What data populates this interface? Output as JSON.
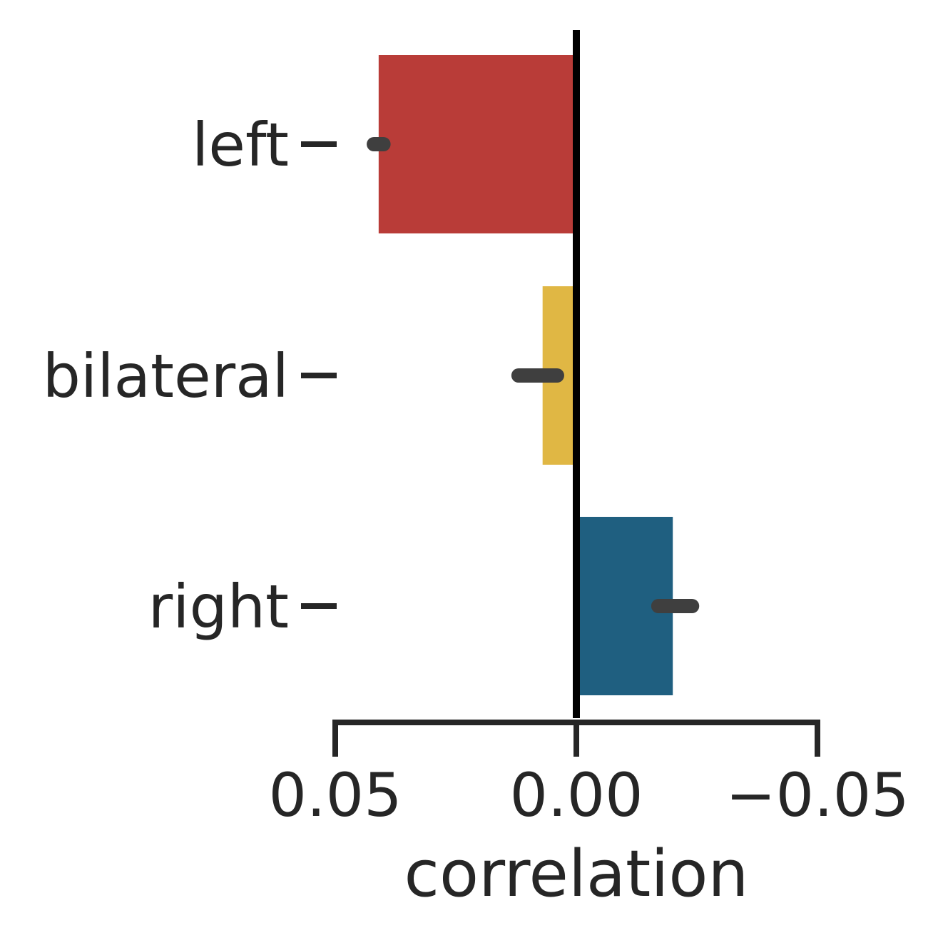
{
  "chart_data": {
    "type": "bar",
    "orientation": "horizontal",
    "categories": [
      "left",
      "bilateral",
      "right"
    ],
    "values": [
      0.041,
      0.007,
      -0.02
    ],
    "error_range": [
      [
        0.042,
        0.04
      ],
      [
        0.012,
        0.004
      ],
      [
        -0.017,
        -0.024
      ]
    ],
    "colors": [
      "#b93c38",
      "#e0b744",
      "#1f5f80"
    ],
    "xlabel": "correlation",
    "ylabel": "",
    "title": "",
    "x_inverted": true,
    "xlim": [
      0.05,
      -0.05
    ],
    "xticks": [
      {
        "value": 0.05,
        "label": "0.05"
      },
      {
        "value": 0.0,
        "label": "0.00"
      },
      {
        "value": -0.05,
        "label": "−0.05"
      }
    ],
    "zero_line": true,
    "grid": false,
    "legend": "none"
  }
}
